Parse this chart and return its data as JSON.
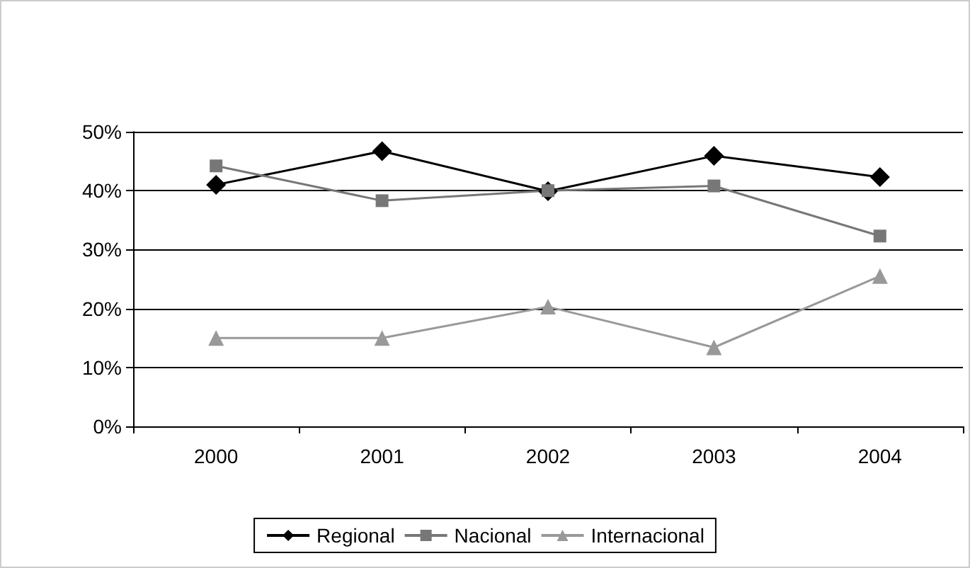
{
  "chart_data": {
    "type": "line",
    "categories": [
      "2000",
      "2001",
      "2002",
      "2003",
      "2004"
    ],
    "series": [
      {
        "name": "Regional",
        "color": "#000000",
        "marker": "diamond",
        "values": [
          41,
          46.7,
          39.9,
          45.9,
          42.3
        ]
      },
      {
        "name": "Nacional",
        "color": "#777777",
        "marker": "square",
        "values": [
          44.2,
          38.3,
          40,
          40.8,
          32.3
        ]
      },
      {
        "name": "Internacional",
        "color": "#999999",
        "marker": "triangle",
        "values": [
          15,
          15,
          20.3,
          13.4,
          25.5
        ]
      }
    ],
    "ylim": [
      0,
      50
    ],
    "yticks": [
      {
        "value": 0,
        "label": "0%"
      },
      {
        "value": 10,
        "label": "10%"
      },
      {
        "value": 20,
        "label": "20%"
      },
      {
        "value": 30,
        "label": "30%"
      },
      {
        "value": 40,
        "label": "40%"
      },
      {
        "value": 50,
        "label": "50%"
      }
    ],
    "grid": "y",
    "legend": "bottom",
    "line_style": "solid"
  }
}
